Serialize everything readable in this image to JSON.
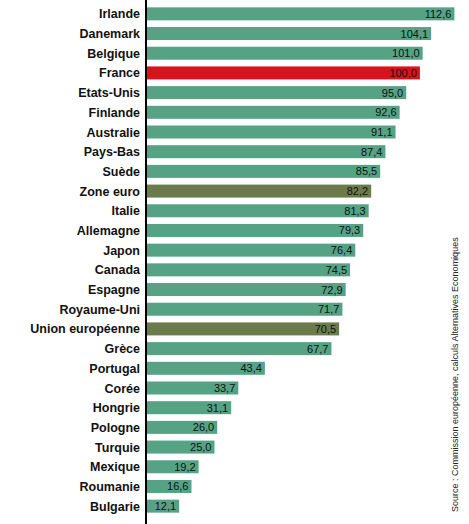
{
  "chart_data": {
    "type": "bar",
    "orientation": "horizontal",
    "categories": [
      "Irlande",
      "Danemark",
      "Belgique",
      "France",
      "Etats-Unis",
      "Finlande",
      "Australie",
      "Pays-Bas",
      "Suède",
      "Zone euro",
      "Italie",
      "Allemagne",
      "Japon",
      "Canada",
      "Espagne",
      "Royaume-Uni",
      "Union européenne",
      "Grèce",
      "Portugal",
      "Corée",
      "Hongrie",
      "Pologne",
      "Turquie",
      "Mexique",
      "Roumanie",
      "Bulgarie"
    ],
    "values": [
      112.6,
      104.1,
      101.0,
      100.0,
      95.0,
      92.6,
      91.1,
      87.4,
      85.5,
      82.2,
      81.3,
      79.3,
      76.4,
      74.5,
      72.9,
      71.7,
      70.5,
      67.7,
      43.4,
      33.7,
      31.1,
      26.0,
      25.0,
      19.2,
      16.6,
      12.1
    ],
    "value_labels": [
      "112,6",
      "104,1",
      "101,0",
      "100,0",
      "95,0",
      "92,6",
      "91,1",
      "87,4",
      "85,5",
      "82,2",
      "81,3",
      "79,3",
      "76,4",
      "74,5",
      "72,9",
      "71,7",
      "70,5",
      "67,7",
      "43,4",
      "33,7",
      "31,1",
      "26,0",
      "25,0",
      "19,2",
      "16,6",
      "12,1"
    ],
    "colors": [
      "#55a285",
      "#55a285",
      "#55a285",
      "#d7141e",
      "#55a285",
      "#55a285",
      "#55a285",
      "#55a285",
      "#55a285",
      "#6b7b4c",
      "#55a285",
      "#55a285",
      "#55a285",
      "#55a285",
      "#55a285",
      "#55a285",
      "#6b7b4c",
      "#55a285",
      "#55a285",
      "#55a285",
      "#55a285",
      "#55a285",
      "#55a285",
      "#55a285",
      "#55a285",
      "#55a285"
    ],
    "xlim": [
      0,
      115
    ],
    "data_labels": true,
    "tick_labels": "y",
    "grid": false,
    "annotations": [
      "Source : Commission européenne, calculs Alternatives Economiques"
    ]
  }
}
